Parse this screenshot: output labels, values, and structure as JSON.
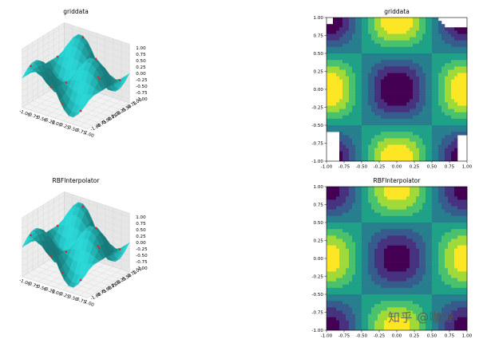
{
  "chart_data": [
    {
      "type": "surface3d",
      "title": "griddata",
      "x_ticks": [
        "-1.00",
        "-0.75",
        "-0.50",
        "-0.25",
        "0.00",
        "0.25",
        "0.50",
        "0.75",
        "1.00"
      ],
      "y_ticks": [
        "-1.00",
        "-0.75",
        "-0.50",
        "-0.25",
        "0.00",
        "0.25",
        "0.50",
        "0.75",
        "1.00"
      ],
      "z_ticks": [
        "1.00",
        "0.75",
        "0.50",
        "0.25",
        "0.00",
        "-0.25",
        "-0.50",
        "-0.75",
        "-1.00"
      ],
      "surface_color": "#27c6c6",
      "points_color": "#d62728",
      "xlim": [
        -1,
        1
      ],
      "ylim": [
        -1,
        1
      ],
      "zlim": [
        -1,
        1
      ],
      "grid": true
    },
    {
      "type": "contourf",
      "title": "griddata",
      "x_ticks": [
        "-1.00",
        "-0.75",
        "-0.50",
        "-0.25",
        "0.00",
        "0.25",
        "0.50",
        "0.75",
        "1.00"
      ],
      "y_ticks": [
        "1.00",
        "0.75",
        "0.50",
        "0.25",
        "0.00",
        "-0.25",
        "-0.50",
        "-0.75",
        "-1.00"
      ],
      "xlim": [
        -1,
        1
      ],
      "ylim": [
        -1,
        1
      ],
      "colormap": "viridis",
      "levels": 8
    },
    {
      "type": "surface3d",
      "title": "RBFInterpolator",
      "x_ticks": [
        "-1.00",
        "-0.75",
        "-0.50",
        "-0.25",
        "0.00",
        "0.25",
        "0.50",
        "0.75",
        "1.00"
      ],
      "y_ticks": [
        "-1.00",
        "-0.75",
        "-0.50",
        "-0.25",
        "0.00",
        "0.25",
        "0.50",
        "0.75",
        "1.00"
      ],
      "z_ticks": [
        "1.00",
        "0.75",
        "0.50",
        "0.25",
        "0.00",
        "-0.25",
        "-0.50",
        "-0.75",
        "-1.00"
      ],
      "surface_color": "#27c6c6",
      "points_color": "#d62728",
      "xlim": [
        -1,
        1
      ],
      "ylim": [
        -1,
        1
      ],
      "zlim": [
        -1,
        1
      ],
      "grid": true
    },
    {
      "type": "contourf",
      "title": "RBFInterpolator",
      "x_ticks": [
        "-1.00",
        "-0.75",
        "-0.50",
        "-0.25",
        "0.00",
        "0.25",
        "0.50",
        "0.75",
        "1.00"
      ],
      "y_ticks": [
        "1.00",
        "0.75",
        "0.50",
        "0.25",
        "0.00",
        "-0.25",
        "-0.50",
        "-0.75",
        "-1.00"
      ],
      "xlim": [
        -1,
        1
      ],
      "ylim": [
        -1,
        1
      ],
      "colormap": "viridis",
      "levels": 8
    }
  ],
  "viridis": [
    "#440154",
    "#46327e",
    "#365c8d",
    "#277f8e",
    "#1fa187",
    "#4ac16d",
    "#a0da39",
    "#fde725"
  ],
  "watermark": "知乎 @咖喱"
}
